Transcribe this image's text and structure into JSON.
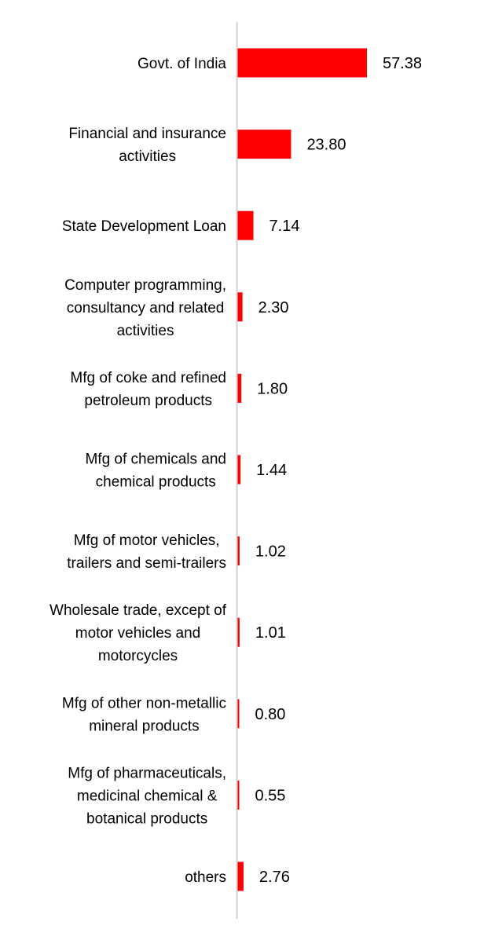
{
  "chart_data": {
    "type": "bar",
    "orientation": "horizontal",
    "categories": [
      "Govt. of India",
      "Financial and insurance activities",
      "State Development Loan",
      "Computer programming, consultancy and related activities",
      "Mfg of coke and refined petroleum products",
      "Mfg of chemicals and chemical products",
      "Mfg of motor vehicles, trailers and semi-trailers",
      "Wholesale trade, except of motor vehicles and motorcycles",
      "Mfg of other non-metallic mineral products",
      "Mfg of pharmaceuticals, medicinal chemical & botanical products",
      "others"
    ],
    "category_lines": [
      [
        "Govt. of India"
      ],
      [
        "Financial and insurance",
        "activities"
      ],
      [
        "State Development Loan"
      ],
      [
        "Computer programming,",
        "consultancy and related",
        "activities"
      ],
      [
        "Mfg of coke and refined",
        "petroleum products"
      ],
      [
        "Mfg of chemicals and",
        "chemical products"
      ],
      [
        "Mfg of motor vehicles,",
        "trailers and semi-trailers"
      ],
      [
        "Wholesale trade, except of",
        "motor vehicles and",
        "motorcycles"
      ],
      [
        "Mfg of other non-metallic",
        "mineral products"
      ],
      [
        "Mfg of pharmaceuticals,",
        "medicinal chemical &",
        "botanical products"
      ],
      [
        "others"
      ]
    ],
    "values": [
      57.38,
      23.8,
      7.14,
      2.3,
      1.8,
      1.44,
      1.02,
      1.01,
      0.8,
      0.55,
      2.76
    ],
    "value_labels": [
      "57.38",
      "23.80",
      "7.14",
      "2.30",
      "1.80",
      "1.44",
      "1.02",
      "1.01",
      "0.80",
      "0.55",
      "2.76"
    ],
    "xlim": [
      0,
      60
    ],
    "grid": false,
    "bar_color": "#ff0000",
    "axis_color": "#d0d0d0"
  }
}
